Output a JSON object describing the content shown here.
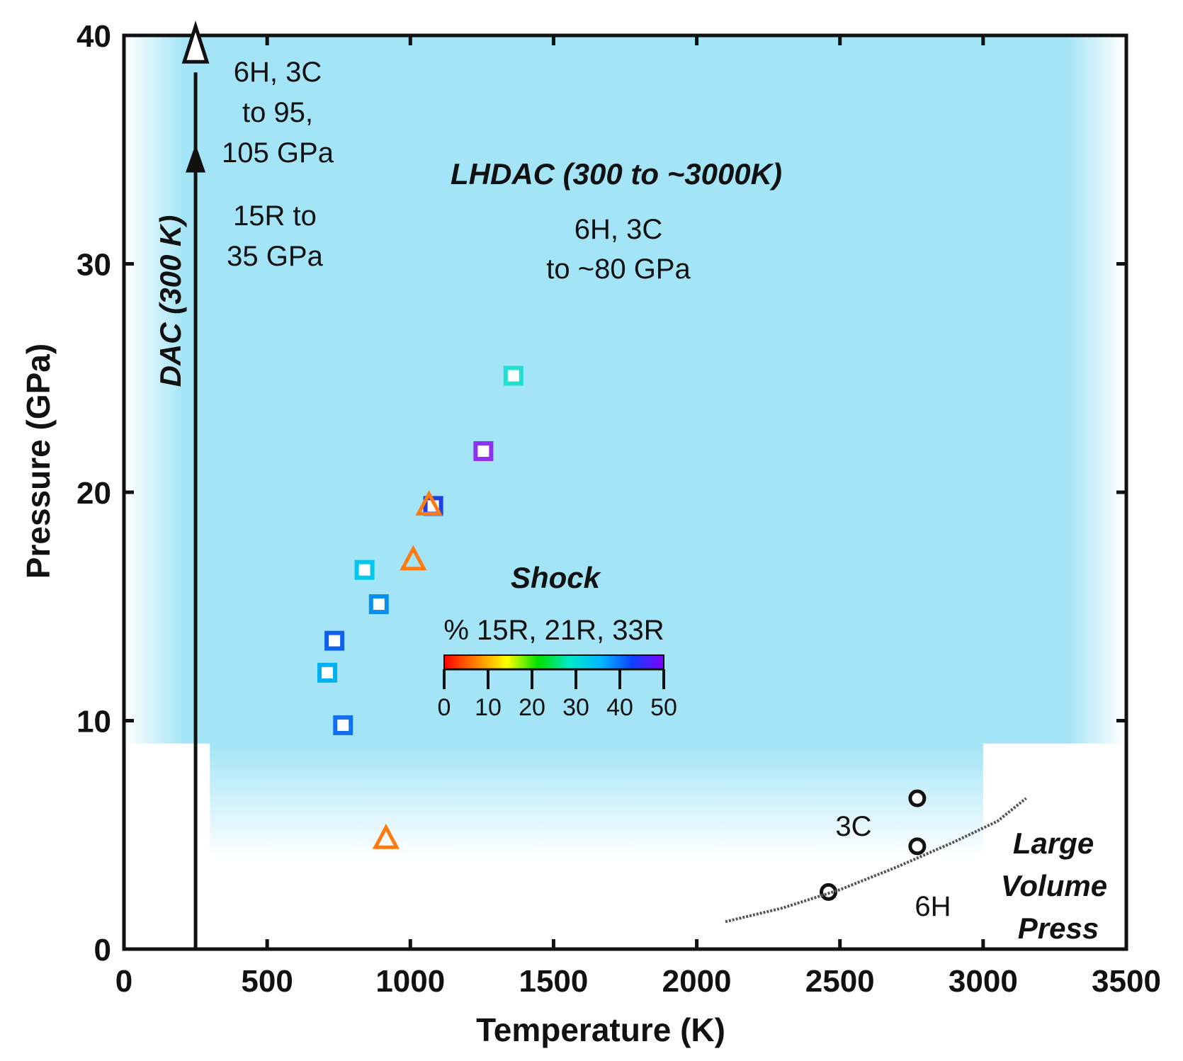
{
  "chart_data": {
    "type": "scatter",
    "title": "",
    "xlabel": "Temperature (K)",
    "ylabel": "Pressure (GPa)",
    "xlim": [
      0,
      3500
    ],
    "ylim": [
      0,
      40
    ],
    "xticks": [
      0,
      500,
      1000,
      1500,
      2000,
      2500,
      3000,
      3500
    ],
    "yticks": [
      0,
      10,
      20,
      30,
      40
    ],
    "regions": {
      "lhdac": {
        "title": "LHDAC (300 to ~3000K)",
        "note_line1": "6H, 3C",
        "note_line2": "to ~80 GPa",
        "color": "#a3e4f6"
      },
      "dac": {
        "title": "DAC (300 K)",
        "temperature": 250,
        "note_upper_line1": "6H, 3C",
        "note_upper_line2": "to 95,",
        "note_upper_line3": "105 GPa",
        "note_lower_line1": "15R to",
        "note_lower_line2": "35 GPa",
        "arrow_filled_top": 34,
        "arrow_open_top": 39
      },
      "shock": {
        "title": "Shock",
        "colorbar_label": "% 15R, 21R, 33R",
        "colorbar_range": [
          0,
          50
        ],
        "colorbar_ticks": [
          "0",
          "10",
          "20",
          "30",
          "40",
          "50"
        ],
        "colorbar_colors": [
          "#ff0000",
          "#ff8000",
          "#ffff00",
          "#00e000",
          "#00e8c8",
          "#00b8ff",
          "#1040ff",
          "#8000ff"
        ]
      },
      "lvp": {
        "title_line1": "Large",
        "title_line2": "Volume",
        "title_line3": "Press",
        "phase_above": "3C",
        "phase_below": "6H"
      }
    },
    "series": [
      {
        "name": "Shock (% 15R, 21R, 33R)",
        "marker": "square",
        "points": [
          {
            "x": 1360,
            "y": 25.1,
            "color": "#20e0d0"
          },
          {
            "x": 1255,
            "y": 21.8,
            "color": "#9030f0"
          },
          {
            "x": 1080,
            "y": 19.4,
            "color": "#2040e0"
          },
          {
            "x": 840,
            "y": 16.6,
            "color": "#00c8f0"
          },
          {
            "x": 890,
            "y": 15.1,
            "color": "#0a90ec"
          },
          {
            "x": 735,
            "y": 13.5,
            "color": "#1060f0"
          },
          {
            "x": 710,
            "y": 12.1,
            "color": "#00b0f0"
          },
          {
            "x": 765,
            "y": 9.8,
            "color": "#1070f0"
          }
        ]
      },
      {
        "name": "Shock (orange triangles)",
        "marker": "triangle",
        "color": "#ff7a10",
        "points": [
          {
            "x": 1065,
            "y": 19.4
          },
          {
            "x": 1010,
            "y": 17.0
          },
          {
            "x": 915,
            "y": 4.8
          }
        ]
      },
      {
        "name": "Large Volume Press",
        "marker": "circle",
        "color": "#111111",
        "points": [
          {
            "x": 2770,
            "y": 6.6
          },
          {
            "x": 2770,
            "y": 4.5
          },
          {
            "x": 2460,
            "y": 2.5
          }
        ]
      },
      {
        "name": "6H-3C boundary",
        "type": "line",
        "dashed": true,
        "color": "#555555",
        "points": [
          {
            "x": 2100,
            "y": 1.2
          },
          {
            "x": 2300,
            "y": 1.8
          },
          {
            "x": 2500,
            "y": 2.6
          },
          {
            "x": 2700,
            "y": 3.6
          },
          {
            "x": 2900,
            "y": 4.7
          },
          {
            "x": 3050,
            "y": 5.6
          },
          {
            "x": 3150,
            "y": 6.6
          }
        ]
      }
    ]
  }
}
